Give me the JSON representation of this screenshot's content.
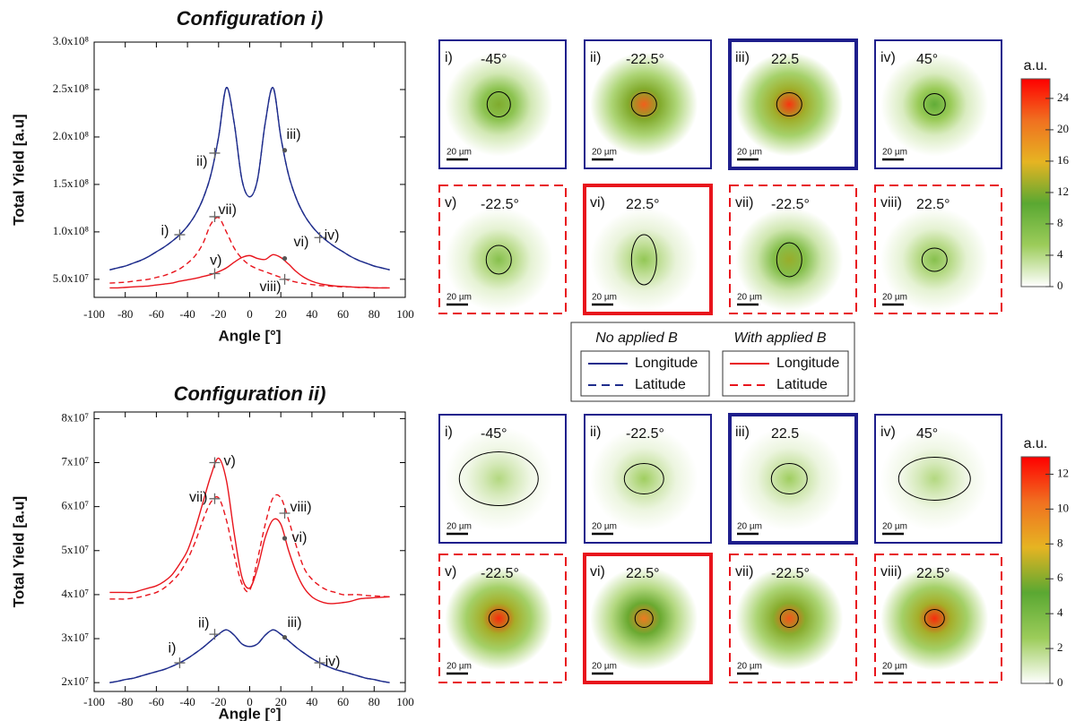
{
  "chart_data": [
    {
      "type": "line",
      "title": "Configuration i)",
      "x_label": "Angle [°]",
      "y_label": "Total Yield [a.u]",
      "xlim": [
        -100,
        100
      ],
      "xticks": [
        -100,
        -80,
        -60,
        -40,
        -20,
        0,
        20,
        40,
        60,
        80,
        100
      ],
      "ylim": [
        31000000,
        300000000
      ],
      "yticks": [
        {
          "value": 300000000,
          "label": "3.0x10⁸"
        },
        {
          "value": 250000000,
          "label": "2.5x10⁸"
        },
        {
          "value": 200000000,
          "label": "2.0x10⁸"
        },
        {
          "value": 150000000,
          "label": "1.5x10⁸"
        },
        {
          "value": 100000000,
          "label": "1.0x10⁸"
        },
        {
          "value": 50000000,
          "label": "5.0x10⁷"
        }
      ],
      "x": [
        -90,
        -85,
        -80,
        -75,
        -70,
        -65,
        -60,
        -55,
        -50,
        -45,
        -40,
        -35,
        -30,
        -25,
        -20,
        -15,
        -10,
        -5,
        0,
        5,
        10,
        15,
        20,
        25,
        30,
        35,
        40,
        45,
        50,
        55,
        60,
        65,
        70,
        75,
        80,
        85,
        90
      ],
      "series": [
        {
          "name": "Longitude",
          "color": "#1f2d8c",
          "dashed": false,
          "values": [
            60000000,
            62000000,
            64000000,
            67000000,
            70000000,
            74000000,
            79000000,
            84000000,
            90000000,
            97000000,
            106000000,
            118000000,
            135000000,
            160000000,
            200000000,
            252000000,
            215000000,
            155000000,
            137000000,
            155000000,
            215000000,
            252000000,
            200000000,
            160000000,
            135000000,
            118000000,
            106000000,
            97000000,
            90000000,
            84000000,
            79000000,
            74000000,
            70000000,
            67000000,
            64000000,
            62000000,
            60000000
          ]
        },
        {
          "name": "Latitude",
          "color": "#1f2d8c",
          "dashed": true,
          "values": [
            60000000,
            62000000,
            64000000,
            67000000,
            70000000,
            74000000,
            79000000,
            84000000,
            90000000,
            97000000,
            106000000,
            118000000,
            135000000,
            160000000,
            200000000,
            252000000,
            215000000,
            155000000,
            137000000,
            155000000,
            215000000,
            252000000,
            200000000,
            160000000,
            135000000,
            118000000,
            106000000,
            97000000,
            90000000,
            84000000,
            79000000,
            74000000,
            70000000,
            67000000,
            64000000,
            62000000,
            60000000
          ]
        },
        {
          "name": "Longitude",
          "color": "#e8141c",
          "dashed": false,
          "values": [
            41000000,
            41000000,
            41500000,
            42000000,
            42500000,
            43000000,
            44000000,
            45000000,
            46000000,
            48000000,
            49500000,
            51000000,
            53000000,
            55000000,
            58000000,
            62000000,
            68000000,
            73000000,
            75000000,
            72000000,
            71000000,
            76000000,
            73000000,
            66000000,
            58000000,
            52000000,
            48000000,
            45500000,
            44000000,
            43000000,
            42500000,
            42000000,
            41500000,
            41500000,
            41000000,
            41000000,
            41000000
          ]
        },
        {
          "name": "Latitude",
          "color": "#e8141c",
          "dashed": true,
          "values": [
            46000000,
            46500000,
            47000000,
            48000000,
            49000000,
            50000000,
            52000000,
            54000000,
            57000000,
            61000000,
            67000000,
            75000000,
            88000000,
            108000000,
            115000000,
            100000000,
            83000000,
            72000000,
            65000000,
            61000000,
            58000000,
            55000000,
            52000000,
            49000000,
            47000000,
            45500000,
            44500000,
            43500000,
            43000000,
            42500000,
            42000000,
            42000000,
            41500000,
            41500000,
            41000000,
            41000000,
            41000000
          ]
        }
      ],
      "annotations": [
        {
          "label": "i)",
          "x": -45,
          "y": 97000000,
          "marker": "plus"
        },
        {
          "label": "ii)",
          "x": -22.5,
          "y": 183000000,
          "marker": "plus"
        },
        {
          "label": "iii)",
          "x": 22.5,
          "y": 186000000,
          "marker": "dot"
        },
        {
          "label": "iv)",
          "x": 45,
          "y": 94000000,
          "marker": "plus"
        },
        {
          "label": "v)",
          "x": -22.5,
          "y": 56000000,
          "marker": "plus"
        },
        {
          "label": "vi)",
          "x": 22.5,
          "y": 72000000,
          "marker": "dot"
        },
        {
          "label": "vii)",
          "x": -22.5,
          "y": 116000000,
          "marker": "plus"
        },
        {
          "label": "viii)",
          "x": 22.5,
          "y": 50000000,
          "marker": "plus"
        }
      ]
    },
    {
      "type": "line",
      "title": "Configuration ii)",
      "x_label": "Angle [°]",
      "y_label": "Total Yield [a.u]",
      "xlim": [
        -100,
        100
      ],
      "xticks": [
        -100,
        -80,
        -60,
        -40,
        -20,
        0,
        20,
        40,
        60,
        80,
        100
      ],
      "ylim": [
        18000000,
        81500000
      ],
      "yticks": [
        {
          "value": 80000000,
          "label": "8x10⁷"
        },
        {
          "value": 70000000,
          "label": "7x10⁷"
        },
        {
          "value": 60000000,
          "label": "6x10⁷"
        },
        {
          "value": 50000000,
          "label": "5x10⁷"
        },
        {
          "value": 40000000,
          "label": "4x10⁷"
        },
        {
          "value": 30000000,
          "label": "3x10⁷"
        },
        {
          "value": 20000000,
          "label": "2x10⁷"
        }
      ],
      "x": [
        -90,
        -85,
        -80,
        -75,
        -70,
        -65,
        -60,
        -55,
        -50,
        -45,
        -40,
        -35,
        -30,
        -25,
        -20,
        -15,
        -10,
        -5,
        0,
        5,
        10,
        15,
        20,
        25,
        30,
        35,
        40,
        45,
        50,
        55,
        60,
        65,
        70,
        75,
        80,
        85,
        90
      ],
      "series": [
        {
          "color": "#1f2d8c",
          "dashed": false,
          "values": [
            20000000,
            20300000,
            20700000,
            21000000,
            21500000,
            22000000,
            22500000,
            23000000,
            23700000,
            24500000,
            25500000,
            26700000,
            28000000,
            29500000,
            31000000,
            32000000,
            30800000,
            28800000,
            28200000,
            28800000,
            30800000,
            32000000,
            31000000,
            29500000,
            28000000,
            26700000,
            25500000,
            24500000,
            23700000,
            23000000,
            22500000,
            22000000,
            21500000,
            21000000,
            20700000,
            20300000,
            20000000
          ]
        },
        {
          "color": "#1f2d8c",
          "dashed": true,
          "values": [
            20000000,
            20300000,
            20700000,
            21000000,
            21500000,
            22000000,
            22500000,
            23000000,
            23700000,
            24500000,
            25500000,
            26700000,
            28000000,
            29500000,
            31000000,
            32000000,
            30800000,
            28800000,
            28200000,
            28800000,
            30800000,
            32000000,
            31000000,
            29500000,
            28000000,
            26700000,
            25500000,
            24500000,
            23700000,
            23000000,
            22500000,
            22000000,
            21500000,
            21000000,
            20700000,
            20300000,
            20000000
          ]
        },
        {
          "color": "#e8141c",
          "dashed": false,
          "values": [
            40500000,
            40500000,
            40500000,
            40500000,
            41000000,
            41500000,
            42000000,
            43000000,
            44500000,
            47000000,
            50000000,
            55000000,
            61000000,
            67000000,
            71000000,
            66000000,
            54000000,
            44000000,
            41500000,
            46000000,
            53000000,
            57000000,
            56000000,
            50000000,
            45000000,
            41500000,
            39500000,
            38500000,
            38000000,
            38000000,
            38200000,
            38500000,
            39000000,
            39200000,
            39300000,
            39400000,
            39500000
          ]
        },
        {
          "color": "#e8141c",
          "dashed": true,
          "values": [
            39000000,
            39000000,
            39000000,
            39200000,
            39500000,
            40000000,
            40500000,
            41500000,
            43000000,
            45000000,
            48000000,
            52000000,
            57000000,
            61000000,
            62000000,
            57000000,
            49000000,
            42500000,
            41000000,
            48000000,
            56000000,
            62000000,
            62000000,
            57000000,
            51000000,
            46000000,
            43500000,
            42000000,
            41000000,
            40500000,
            40000000,
            40000000,
            40000000,
            39800000,
            39700000,
            39600000,
            39500000
          ]
        }
      ],
      "annotations": [
        {
          "label": "i)",
          "x": -45,
          "y": 24500000,
          "marker": "plus"
        },
        {
          "label": "ii)",
          "x": -22.5,
          "y": 31000000,
          "marker": "plus"
        },
        {
          "label": "iii)",
          "x": 22.5,
          "y": 30300000,
          "marker": "dot"
        },
        {
          "label": "iv)",
          "x": 45,
          "y": 24500000,
          "marker": "plus"
        },
        {
          "label": "v)",
          "x": -22.5,
          "y": 70000000,
          "marker": "plus"
        },
        {
          "label": "vi)",
          "x": 22.5,
          "y": 52800000,
          "marker": "dot"
        },
        {
          "label": "vii)",
          "x": -22.5,
          "y": 61800000,
          "marker": "plus"
        },
        {
          "label": "viii)",
          "x": 22.5,
          "y": 58500000,
          "marker": "plus"
        }
      ]
    }
  ],
  "legend": {
    "groups": [
      "No applied B",
      "With applied B"
    ]
  },
  "image_panels": [
    {
      "panels": [
        {
          "label": "i)",
          "angle": "-45°",
          "scale_bar": "20 µm",
          "color": "#1e1e8c",
          "border": "thin",
          "peak": 12
        },
        {
          "label": "ii)",
          "angle": "-22.5°",
          "scale_bar": "20 µm",
          "color": "#1e1e8c",
          "border": "thin",
          "peak": 22
        },
        {
          "label": "iii)",
          "angle": "22.5",
          "scale_bar": "20 µm",
          "color": "#1e1e8c",
          "border": "thick",
          "peak": 24
        },
        {
          "label": "iv)",
          "angle": "45°",
          "scale_bar": "20 µm",
          "color": "#1e1e8c",
          "border": "thin",
          "peak": 10
        },
        {
          "label": "v)",
          "angle": "-22.5°",
          "scale_bar": "20 µm",
          "color": "#e8141c",
          "border": "dashed",
          "peak": 7
        },
        {
          "label": "vi)",
          "angle": "22.5°",
          "scale_bar": "20 µm",
          "color": "#e8141c",
          "border": "thick",
          "peak": 6
        },
        {
          "label": "vii)",
          "angle": "-22.5°",
          "scale_bar": "20 µm",
          "color": "#e8141c",
          "border": "dashed",
          "peak": 13
        },
        {
          "label": "viii)",
          "angle": "22.5°",
          "scale_bar": "20 µm",
          "color": "#e8141c",
          "border": "dashed",
          "peak": 7
        }
      ],
      "colorbar": {
        "title": "a.u.",
        "range": [
          0,
          26.5
        ],
        "ticks": [
          0,
          4,
          8,
          12,
          16,
          20,
          24
        ],
        "colors": [
          "#ffffff",
          "#9ccc5a",
          "#5aa832",
          "#e6b422",
          "#f07020",
          "#ff0000"
        ]
      }
    },
    {
      "panels": [
        {
          "label": "i)",
          "angle": "-45°",
          "scale_bar": "20 µm",
          "color": "#1e1e8c",
          "border": "thin",
          "peak": 2
        },
        {
          "label": "ii)",
          "angle": "-22.5°",
          "scale_bar": "20 µm",
          "color": "#1e1e8c",
          "border": "thin",
          "peak": 2.5
        },
        {
          "label": "iii)",
          "angle": "22.5",
          "scale_bar": "20 µm",
          "color": "#1e1e8c",
          "border": "thick",
          "peak": 2.5
        },
        {
          "label": "iv)",
          "angle": "45°",
          "scale_bar": "20 µm",
          "color": "#1e1e8c",
          "border": "thin",
          "peak": 2
        },
        {
          "label": "v)",
          "angle": "-22.5°",
          "scale_bar": "20 µm",
          "color": "#e8141c",
          "border": "dashed",
          "peak": 12
        },
        {
          "label": "vi)",
          "angle": "22.5°",
          "scale_bar": "20 µm",
          "color": "#e8141c",
          "border": "thick",
          "peak": 10
        },
        {
          "label": "vii)",
          "angle": "-22.5°",
          "scale_bar": "20 µm",
          "color": "#e8141c",
          "border": "dashed",
          "peak": 11
        },
        {
          "label": "viii)",
          "angle": "22.5°",
          "scale_bar": "20 µm",
          "color": "#e8141c",
          "border": "dashed",
          "peak": 12
        }
      ],
      "colorbar": {
        "title": "a.u.",
        "range": [
          0,
          13
        ],
        "ticks": [
          0,
          2,
          4,
          6,
          8,
          10,
          12
        ],
        "colors": [
          "#ffffff",
          "#9ccc5a",
          "#5aa832",
          "#e6b422",
          "#f07020",
          "#ff0000"
        ]
      }
    }
  ]
}
